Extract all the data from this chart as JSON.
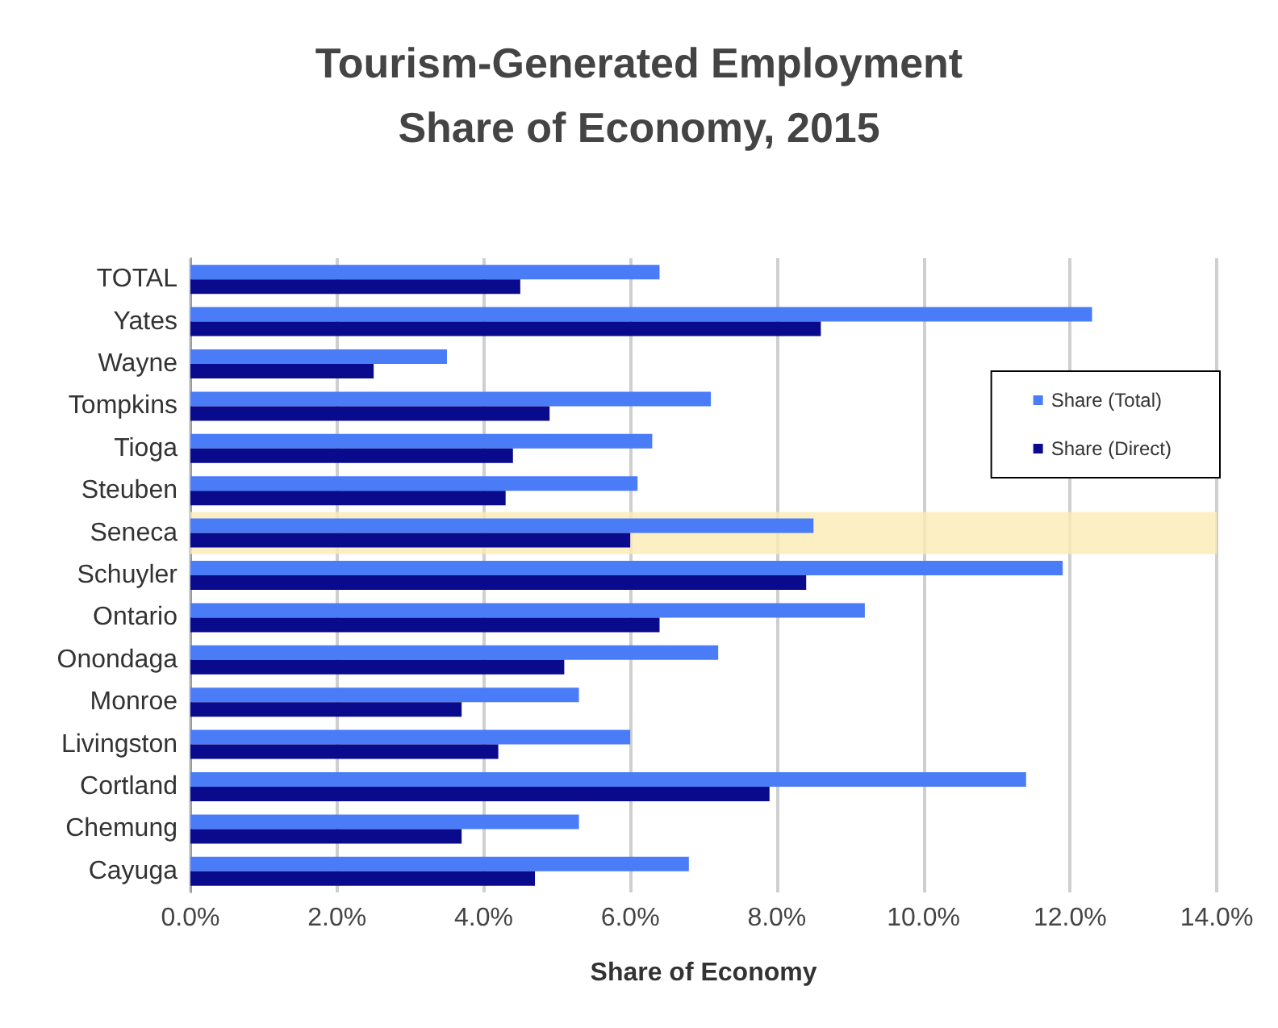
{
  "chart_data": {
    "type": "bar",
    "orientation": "horizontal",
    "title": "Tourism-Generated Employment\nShare of Economy, 2015",
    "xlabel": "Share of Economy",
    "categories": [
      "TOTAL",
      "Yates",
      "Wayne",
      "Tompkins",
      "Tioga",
      "Steuben",
      "Seneca",
      "Schuyler",
      "Ontario",
      "Onondaga",
      "Monroe",
      "Livingston",
      "Cortland",
      "Chemung",
      "Cayuga"
    ],
    "series": [
      {
        "name": "Share (Total)",
        "color": "#4a7cf7",
        "values": [
          6.4,
          12.3,
          3.5,
          7.1,
          6.3,
          6.1,
          8.5,
          11.9,
          9.2,
          7.2,
          5.3,
          6.0,
          11.4,
          5.3,
          6.8
        ]
      },
      {
        "name": "Share (Direct)",
        "color": "#0a0a8c",
        "values": [
          4.5,
          8.6,
          2.5,
          4.9,
          4.4,
          4.3,
          6.0,
          8.4,
          6.4,
          5.1,
          3.7,
          4.2,
          7.9,
          3.7,
          4.7
        ]
      }
    ],
    "xlim": [
      0,
      14
    ],
    "xticks": [
      {
        "value": 0,
        "label": "0.0%"
      },
      {
        "value": 2,
        "label": "2.0%"
      },
      {
        "value": 4,
        "label": "4.0%"
      },
      {
        "value": 6,
        "label": "6.0%"
      },
      {
        "value": 8,
        "label": "8.0%"
      },
      {
        "value": 10,
        "label": "10.0%"
      },
      {
        "value": 12,
        "label": "12.0%"
      },
      {
        "value": 14,
        "label": "14.0%"
      }
    ],
    "bands": [
      {
        "axis": "y",
        "from": "Seneca",
        "to": "Seneca",
        "color": "#fcebb5"
      }
    ],
    "grid": "x",
    "legend": "top right"
  }
}
